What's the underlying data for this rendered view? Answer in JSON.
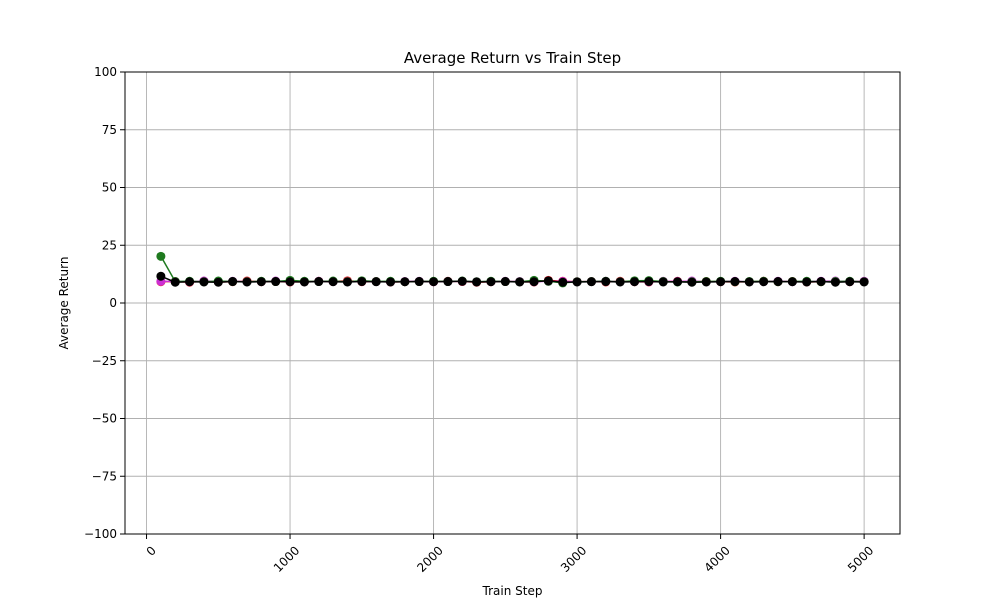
{
  "chart_data": {
    "type": "line",
    "title": "Average Return vs Train Step",
    "xlabel": "Train Step",
    "ylabel": "Average Return",
    "xlim": [
      -150,
      5250
    ],
    "ylim": [
      -100,
      100
    ],
    "x_ticks": [
      0,
      1000,
      2000,
      3000,
      4000,
      5000
    ],
    "y_ticks": [
      -100,
      -75,
      -50,
      -25,
      0,
      25,
      50,
      75,
      100
    ],
    "grid": true,
    "x_tick_rotation": 45,
    "series": [
      {
        "color": "#e8202a",
        "x": [
          100,
          200,
          300,
          400,
          500,
          600,
          700,
          800,
          900,
          1000,
          1100,
          1200,
          1300,
          1400,
          1500,
          1600,
          1700,
          1800,
          1900,
          2000,
          2100,
          2200,
          2300,
          2400,
          2500,
          2600,
          2700,
          2800,
          2900,
          3000,
          3100,
          3200,
          3300,
          3400,
          3500,
          3600,
          3700,
          3800,
          3900,
          4000,
          4100,
          4200,
          4300,
          4400,
          4500,
          4600,
          4700,
          4800,
          4900,
          5000
        ],
        "y": [
          9.2,
          9.3,
          9.0,
          9.4,
          9.1,
          9.2,
          9.5,
          9.2,
          9.3,
          9.1,
          9.2,
          9.4,
          9.3,
          9.6,
          9.2,
          9.3,
          9.1,
          9.2,
          9.3,
          9.2,
          9.4,
          9.3,
          9.0,
          9.2,
          9.3,
          9.2,
          9.1,
          9.8,
          9.4,
          9.2,
          9.3,
          9.1,
          9.4,
          9.2,
          9.1,
          9.3,
          9.4,
          9.2,
          9.3,
          9.2,
          9.1,
          9.2,
          9.4,
          9.2,
          9.3,
          9.1,
          9.2,
          9.3,
          9.2,
          9.3
        ]
      },
      {
        "color": "#cc2fd4",
        "x": [
          100,
          200,
          300,
          400,
          500,
          600,
          700,
          800,
          900,
          1000,
          1100,
          1200,
          1300,
          1400,
          1500,
          1600,
          1700,
          1800,
          1900,
          2000,
          2100,
          2200,
          2300,
          2400,
          2500,
          2600,
          2700,
          2800,
          2900,
          3000,
          3100,
          3200,
          3300,
          3400,
          3500,
          3600,
          3700,
          3800,
          3900,
          4000,
          4100,
          4200,
          4300,
          4400,
          4500,
          4600,
          4700,
          4800,
          4900,
          5000
        ],
        "y": [
          9.4,
          9.3,
          9.2,
          9.5,
          9.3,
          9.4,
          9.2,
          9.3,
          9.5,
          9.3,
          9.2,
          9.4,
          9.3,
          9.2,
          9.4,
          9.3,
          9.2,
          9.3,
          9.4,
          9.2,
          9.3,
          9.4,
          9.2,
          9.3,
          9.4,
          9.3,
          9.2,
          9.4,
          9.3,
          9.2,
          9.3,
          9.4,
          9.2,
          9.3,
          9.2,
          9.4,
          9.3,
          9.5,
          9.2,
          9.3,
          9.4,
          9.2,
          9.3,
          9.4,
          9.2,
          9.3,
          9.4,
          9.5,
          9.3,
          9.4
        ]
      },
      {
        "color": "#1f7a1f",
        "x": [
          100,
          200,
          300,
          400,
          500,
          600,
          700,
          800,
          900,
          1000,
          1100,
          1200,
          1300,
          1400,
          1500,
          1600,
          1700,
          1800,
          1900,
          2000,
          2100,
          2200,
          2300,
          2400,
          2500,
          2600,
          2700,
          2800,
          2900,
          3000,
          3100,
          3200,
          3300,
          3400,
          3500,
          3600,
          3700,
          3800,
          3900,
          4000,
          4100,
          4200,
          4300,
          4400,
          4500,
          4600,
          4700,
          4800,
          4900,
          5000
        ],
        "y": [
          20.2,
          9.3,
          9.4,
          9.2,
          9.5,
          9.3,
          9.2,
          9.4,
          9.3,
          9.8,
          9.4,
          9.3,
          9.5,
          9.2,
          9.6,
          9.3,
          9.4,
          9.2,
          9.3,
          9.4,
          9.3,
          9.5,
          9.2,
          9.4,
          9.3,
          9.2,
          9.8,
          9.4,
          8.7,
          9.2,
          9.3,
          9.4,
          9.2,
          9.6,
          9.7,
          9.3,
          9.1,
          9.2,
          9.3,
          9.4,
          9.2,
          9.3,
          9.4,
          9.2,
          9.3,
          9.4,
          9.2,
          9.3,
          9.4,
          9.2
        ]
      },
      {
        "color": "#000000",
        "x": [
          100,
          200,
          300,
          400,
          500,
          600,
          700,
          800,
          900,
          1000,
          1100,
          1200,
          1300,
          1400,
          1500,
          1600,
          1700,
          1800,
          1900,
          2000,
          2100,
          2200,
          2300,
          2400,
          2500,
          2600,
          2700,
          2800,
          2900,
          3000,
          3100,
          3200,
          3300,
          3400,
          3500,
          3600,
          3700,
          3800,
          3900,
          4000,
          4100,
          4200,
          4300,
          4400,
          4500,
          4600,
          4700,
          4800,
          4900,
          5000
        ],
        "y": [
          11.6,
          9.0,
          9.2,
          9.1,
          9.0,
          9.3,
          9.1,
          9.2,
          9.3,
          9.2,
          9.1,
          9.3,
          9.2,
          9.1,
          9.3,
          9.2,
          9.1,
          9.2,
          9.3,
          9.2,
          9.3,
          9.4,
          9.1,
          9.2,
          9.3,
          9.1,
          9.2,
          9.6,
          9.0,
          9.1,
          9.2,
          9.3,
          9.1,
          9.2,
          9.3,
          9.1,
          9.2,
          9.0,
          9.1,
          9.2,
          9.3,
          9.1,
          9.2,
          9.3,
          9.2,
          9.1,
          9.3,
          9.0,
          9.2,
          9.1
        ]
      }
    ]
  }
}
